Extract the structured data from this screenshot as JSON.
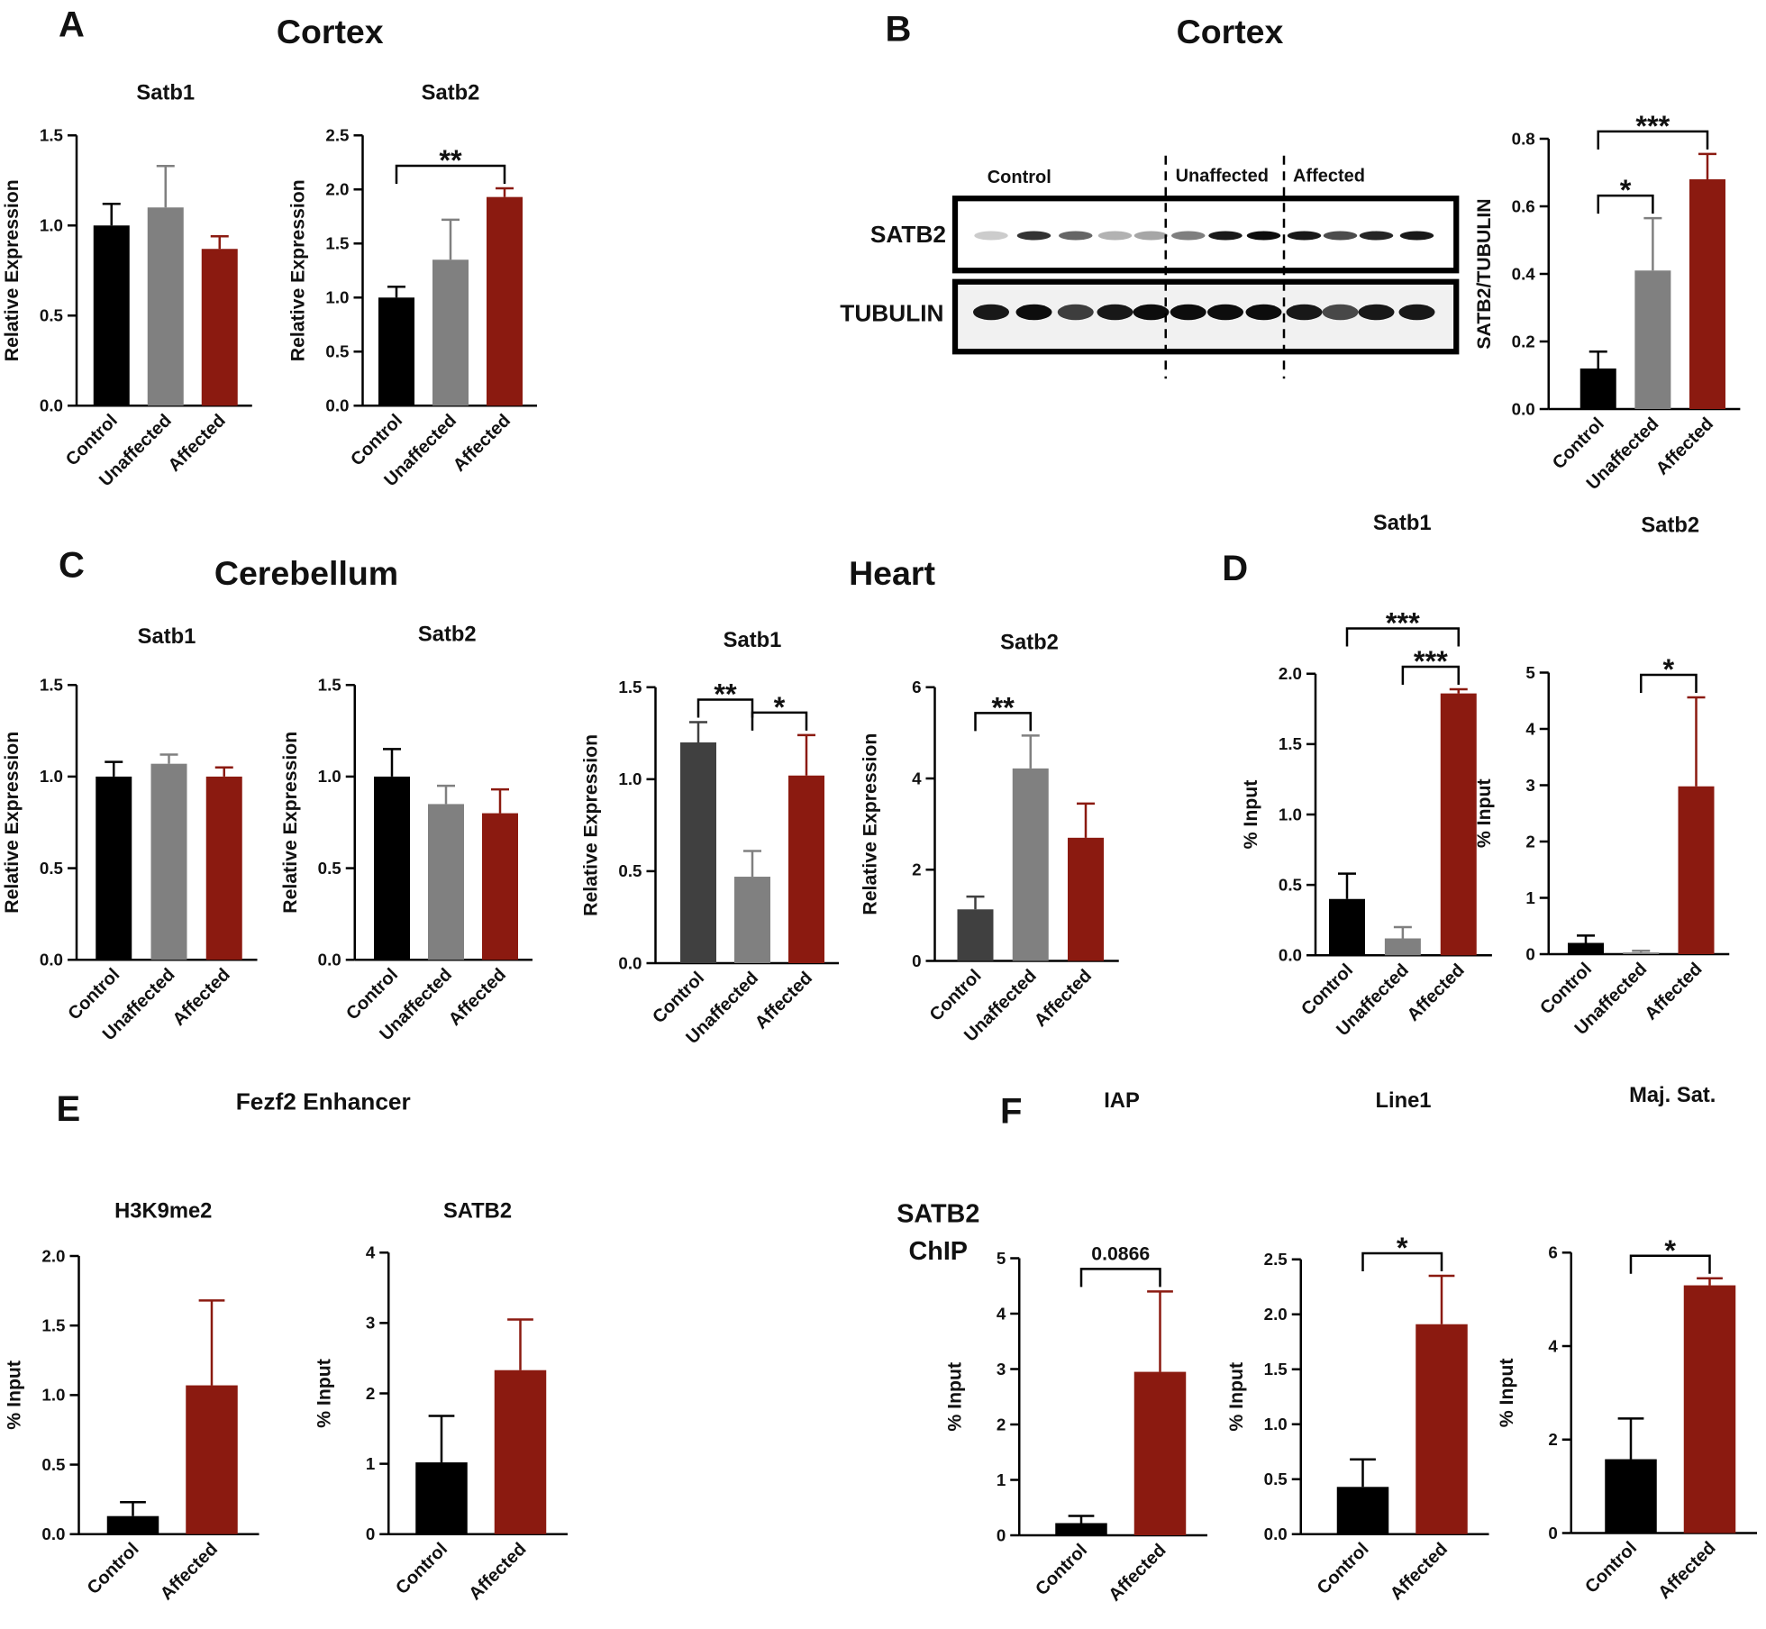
{
  "labels": {
    "letters": [
      "A",
      "B",
      "C",
      "D",
      "E",
      "F"
    ],
    "headings": [
      "Cortex",
      "Cortex",
      "Cerebellum",
      "Heart",
      "Fezf2 Enhancer",
      "SATB2",
      "ChIP"
    ]
  },
  "blot": {
    "groups": [
      "Control",
      "Unaffected",
      "Affected"
    ],
    "rows": [
      "SATB2",
      "TUBULIN"
    ]
  },
  "chart_data": [
    {
      "type": "bar",
      "title": "Satb1",
      "ylabel": "Relative Expression",
      "categories": [
        "Control",
        "Unaffected",
        "Affected"
      ],
      "values": [
        1.0,
        1.1,
        0.87
      ],
      "errors": [
        0.12,
        0.23,
        0.07
      ],
      "colors": [
        "#000000",
        "#808080",
        "#8b1a10"
      ],
      "ylim": [
        0,
        1.5
      ],
      "yticks": [
        {
          "value": 0,
          "label": "0.0"
        },
        0.5,
        {
          "value": 1,
          "label": "1.0"
        },
        1.5
      ],
      "significance": []
    },
    {
      "type": "bar",
      "title": "Satb2",
      "ylabel": "Relative Expression",
      "categories": [
        "Control",
        "Unaffected",
        "Affected"
      ],
      "values": [
        1.0,
        1.35,
        1.93
      ],
      "errors": [
        0.1,
        0.37,
        0.08
      ],
      "colors": [
        "#000000",
        "#808080",
        "#8b1a10"
      ],
      "ylim": [
        0,
        2.5
      ],
      "yticks": [
        {
          "value": 0,
          "label": "0.0"
        },
        0.5,
        {
          "value": 1,
          "label": "1.0"
        },
        1.5,
        {
          "value": 2,
          "label": "2.0"
        },
        2.5
      ],
      "significance": [
        {
          "from": 0,
          "to": 2,
          "label": "**"
        }
      ]
    },
    {
      "type": "bar",
      "ylabel": "SATB2/TUBULIN",
      "categories": [
        "Control",
        "Unaffected",
        "Affected"
      ],
      "values": [
        0.12,
        0.41,
        0.68
      ],
      "errors": [
        0.05,
        0.155,
        0.075
      ],
      "colors": [
        "#000000",
        "#808080",
        "#8b1a10"
      ],
      "ylim": [
        0,
        0.8
      ],
      "yticks": [
        {
          "value": 0,
          "label": "0.0"
        },
        0.2,
        0.4,
        0.6,
        0.8
      ],
      "significance": [
        {
          "from": 0,
          "to": 1,
          "label": "*"
        },
        {
          "from": 0,
          "to": 2,
          "label": "***"
        }
      ]
    },
    {
      "type": "bar",
      "title": "Satb1",
      "ylabel": "Relative Expression",
      "categories": [
        "Control",
        "Unaffected",
        "Affected"
      ],
      "values": [
        1.0,
        1.07,
        1.0
      ],
      "errors": [
        0.08,
        0.05,
        0.05
      ],
      "colors": [
        "#000000",
        "#808080",
        "#8b1a10"
      ],
      "ylim": [
        0,
        1.5
      ],
      "yticks": [
        {
          "value": 0,
          "label": "0.0"
        },
        0.5,
        {
          "value": 1,
          "label": "1.0"
        },
        1.5
      ],
      "significance": []
    },
    {
      "type": "bar",
      "title": "Satb2",
      "ylabel": "Relative Expression",
      "categories": [
        "Control",
        "Unaffected",
        "Affected"
      ],
      "values": [
        1.0,
        0.85,
        0.8
      ],
      "errors": [
        0.15,
        0.1,
        0.13
      ],
      "colors": [
        "#000000",
        "#808080",
        "#8b1a10"
      ],
      "ylim": [
        0,
        1.5
      ],
      "yticks": [
        {
          "value": 0,
          "label": "0.0"
        },
        0.5,
        {
          "value": 1,
          "label": "1.0"
        },
        1.5
      ],
      "significance": []
    },
    {
      "type": "bar",
      "title": "Satb1",
      "ylabel": "Relative Expression",
      "categories": [
        "Control",
        "Unaffected",
        "Affected"
      ],
      "values": [
        1.2,
        0.47,
        1.02
      ],
      "errors": [
        0.11,
        0.14,
        0.22
      ],
      "colors": [
        "#404040",
        "#808080",
        "#8b1a10"
      ],
      "ylim": [
        0,
        1.5
      ],
      "yticks": [
        {
          "value": 0,
          "label": "0.0"
        },
        0.5,
        {
          "value": 1,
          "label": "1.0"
        },
        1.5
      ],
      "significance": [
        {
          "from": 0,
          "to": 1,
          "label": "**"
        },
        {
          "from": 1,
          "to": 2,
          "label": "*"
        }
      ]
    },
    {
      "type": "bar",
      "title": "Satb2",
      "ylabel": "Relative Expression",
      "categories": [
        "Control",
        "Unaffected",
        "Affected"
      ],
      "values": [
        1.13,
        4.22,
        2.7
      ],
      "errors": [
        0.28,
        0.72,
        0.75
      ],
      "colors": [
        "#404040",
        "#808080",
        "#8b1a10"
      ],
      "ylim": [
        0,
        6
      ],
      "yticks": [
        0,
        2,
        4,
        6
      ],
      "significance": [
        {
          "from": 0,
          "to": 1,
          "label": "**"
        }
      ]
    },
    {
      "type": "bar",
      "title": "Satb1",
      "ylabel": "% Input",
      "categories": [
        "Control",
        "Unaffected",
        "Affected"
      ],
      "values": [
        0.4,
        0.12,
        1.86
      ],
      "errors": [
        0.18,
        0.08,
        0.03
      ],
      "colors": [
        "#000000",
        "#808080",
        "#8b1a10"
      ],
      "ylim": [
        0,
        2
      ],
      "yticks": [
        {
          "value": 0,
          "label": "0.0"
        },
        0.5,
        {
          "value": 1,
          "label": "1.0"
        },
        1.5,
        {
          "value": 2,
          "label": "2.0"
        }
      ],
      "significance": [
        {
          "from": 1,
          "to": 2,
          "label": "***"
        },
        {
          "from": 0,
          "to": 2,
          "label": "***"
        }
      ]
    },
    {
      "type": "bar",
      "title": "Satb2",
      "ylabel": "% Input",
      "categories": [
        "Control",
        "Unaffected",
        "Affected"
      ],
      "values": [
        0.2,
        0.03,
        2.98
      ],
      "errors": [
        0.13,
        0.03,
        1.58
      ],
      "colors": [
        "#000000",
        "#808080",
        "#8b1a10"
      ],
      "ylim": [
        0,
        5
      ],
      "yticks": [
        0,
        1,
        2,
        3,
        4,
        5
      ],
      "significance": [
        {
          "from": 1,
          "to": 2,
          "label": "*"
        }
      ]
    },
    {
      "type": "bar",
      "title": "H3K9me2",
      "ylabel": "% Input",
      "categories": [
        "Control",
        "Affected"
      ],
      "values": [
        0.13,
        1.07
      ],
      "errors": [
        0.1,
        0.61
      ],
      "colors": [
        "#000000",
        "#8b1a10"
      ],
      "ylim": [
        0,
        2
      ],
      "yticks": [
        {
          "value": 0,
          "label": "0.0"
        },
        0.5,
        {
          "value": 1,
          "label": "1.0"
        },
        1.5,
        {
          "value": 2,
          "label": "2.0"
        }
      ],
      "significance": []
    },
    {
      "type": "bar",
      "title": "SATB2",
      "ylabel": "% Input",
      "categories": [
        "Control",
        "Affected"
      ],
      "values": [
        1.02,
        2.33
      ],
      "errors": [
        0.66,
        0.72
      ],
      "colors": [
        "#000000",
        "#8b1a10"
      ],
      "ylim": [
        0,
        4
      ],
      "yticks": [
        0,
        1,
        2,
        3,
        4
      ],
      "significance": []
    },
    {
      "type": "bar",
      "title": "IAP",
      "ylabel": "% Input",
      "categories": [
        "Control",
        "Affected"
      ],
      "values": [
        0.22,
        2.95
      ],
      "errors": [
        0.13,
        1.45
      ],
      "colors": [
        "#000000",
        "#8b1a10"
      ],
      "ylim": [
        0,
        5
      ],
      "yticks": [
        0,
        1,
        2,
        3,
        4,
        5
      ],
      "significance": [
        {
          "from": 0,
          "to": 1,
          "label": "0.0866"
        }
      ]
    },
    {
      "type": "bar",
      "title": "Line1",
      "ylabel": "% Input",
      "categories": [
        "Control",
        "Affected"
      ],
      "values": [
        0.43,
        1.91
      ],
      "errors": [
        0.25,
        0.44
      ],
      "colors": [
        "#000000",
        "#8b1a10"
      ],
      "ylim": [
        0,
        2.5
      ],
      "yticks": [
        {
          "value": 0,
          "label": "0.0"
        },
        0.5,
        {
          "value": 1,
          "label": "1.0"
        },
        1.5,
        {
          "value": 2,
          "label": "2.0"
        },
        2.5
      ],
      "significance": [
        {
          "from": 0,
          "to": 1,
          "label": "*"
        }
      ]
    },
    {
      "type": "bar",
      "title": "Maj. Sat.",
      "ylabel": "% Input",
      "categories": [
        "Control",
        "Affected"
      ],
      "values": [
        1.58,
        5.3
      ],
      "errors": [
        0.87,
        0.15
      ],
      "colors": [
        "#000000",
        "#8b1a10"
      ],
      "ylim": [
        0,
        6
      ],
      "yticks": [
        0,
        2,
        4,
        6
      ],
      "significance": [
        {
          "from": 0,
          "to": 1,
          "label": "*"
        }
      ]
    }
  ]
}
